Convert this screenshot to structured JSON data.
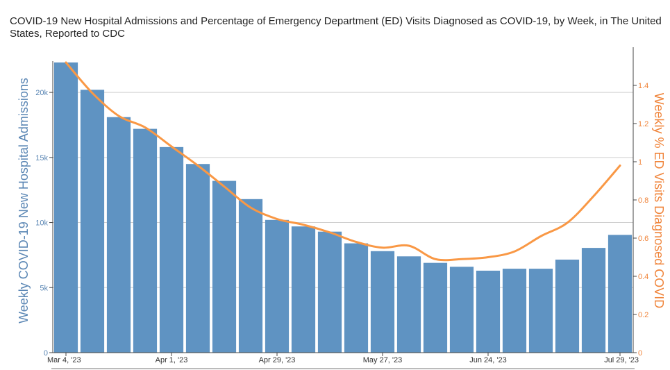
{
  "chart_data": {
    "type": "bar",
    "title": "COVID-19 New Hospital Admissions and Percentage of Emergency Department (ED) Visits Diagnosed as COVID-19, by Week, in The United States, Reported to CDC",
    "categories": [
      "Mar 4, '23",
      "Mar 11, '23",
      "Mar 18, '23",
      "Mar 25, '23",
      "Apr 1, '23",
      "Apr 8, '23",
      "Apr 15, '23",
      "Apr 22, '23",
      "Apr 29, '23",
      "May 6, '23",
      "May 13, '23",
      "May 20, '23",
      "May 27, '23",
      "Jun 3, '23",
      "Jun 10, '23",
      "Jun 17, '23",
      "Jun 24, '23",
      "Jul 1, '23",
      "Jul 8, '23",
      "Jul 15, '23",
      "Jul 22, '23",
      "Jul 29, '23"
    ],
    "x_tick_labels": [
      "Mar 4, '23",
      "Apr 1, '23",
      "Apr 29, '23",
      "May 27, '23",
      "Jun 24, '23",
      "Jul 29, '23"
    ],
    "x_tick_indices": [
      0,
      4,
      8,
      12,
      16,
      21
    ],
    "series": [
      {
        "type": "bar",
        "axis": "left",
        "values": [
          22300,
          20200,
          18100,
          17200,
          15800,
          14500,
          13200,
          11800,
          10200,
          9700,
          9300,
          8400,
          7800,
          7400,
          6900,
          6600,
          6300,
          6450,
          6450,
          7150,
          8050,
          9050
        ]
      },
      {
        "type": "line",
        "axis": "right",
        "values": [
          1.52,
          1.36,
          1.24,
          1.18,
          1.08,
          0.98,
          0.87,
          0.76,
          0.7,
          0.67,
          0.63,
          0.58,
          0.55,
          0.56,
          0.49,
          0.49,
          0.5,
          0.53,
          0.61,
          0.68,
          0.82,
          0.98
        ]
      }
    ],
    "ylabel_left": "Weekly COVID-19 New Hospital Admissions",
    "ylabel_right": "Weekly % ED Visits Diagnosed COVID",
    "ylim_left": [
      0,
      22300
    ],
    "ylim_right": [
      0,
      1.52
    ],
    "y_ticks_left": [
      0,
      5000,
      10000,
      15000,
      20000
    ],
    "y_tick_labels_left": [
      "0",
      "5k",
      "10k",
      "15k",
      "20k"
    ],
    "y_ticks_right": [
      0,
      0.2,
      0.4,
      0.6,
      0.8,
      1,
      1.2,
      1.4
    ],
    "y_tick_labels_right": [
      "0",
      "0.2",
      "0.4",
      "0.6",
      "0.8",
      "1",
      "1.2",
      "1.4"
    ],
    "grid": true,
    "legend": "none",
    "colors": {
      "bars": "#5f93c2",
      "line": "#f99845",
      "left_axis_text": "#5a86b4",
      "right_axis_text": "#f0843a",
      "grid": "#cfcfcf",
      "title_text": "#222222"
    }
  }
}
